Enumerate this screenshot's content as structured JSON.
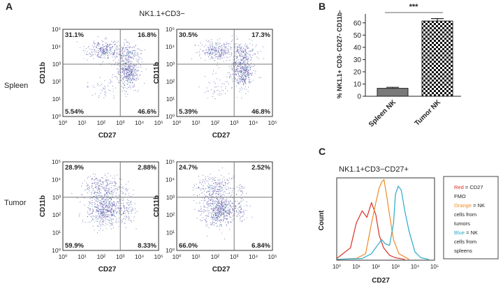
{
  "panel_labels": {
    "a": "A",
    "b": "B",
    "c": "C"
  },
  "figure_title_a": "NK1.1+CD3−",
  "row_labels": [
    "Spleen",
    "Tumor"
  ],
  "axis_tick_labels": [
    "10⁰",
    "10¹",
    "10²",
    "10³",
    "10⁴",
    "10⁵"
  ],
  "facs": {
    "xlabel": "CD27",
    "ylabel": "CD11b",
    "plots": [
      {
        "row": "Spleen",
        "q": [
          "31.1%",
          "16.8%",
          "5.54%",
          "46.6%"
        ]
      },
      {
        "row": "Spleen",
        "q": [
          "30.5%",
          "17.3%",
          "5.39%",
          "46.8%"
        ]
      },
      {
        "row": "Tumor",
        "q": [
          "28.9%",
          "2.88%",
          "59.9%",
          "8.33%"
        ]
      },
      {
        "row": "Tumor",
        "q": [
          "24.7%",
          "2.52%",
          "66.0%",
          "6.84%"
        ]
      }
    ]
  },
  "hist_title": "NK1.1+CD3−CD27+",
  "hist_ylabel": "Count",
  "hist_xlabel": "CD27",
  "legend": {
    "red_word": "Red",
    "red_rest": " = CD27",
    "line2": "FMO",
    "orange_word": "Orange",
    "orange_rest": " = NK",
    "line4": "cells from",
    "line5": "tumors",
    "blue_word": "Blue",
    "blue_rest": " = NK",
    "line7": "cells from",
    "line8": "spleens"
  },
  "colors": {
    "red": "#d93025",
    "orange": "#f08a24",
    "blue": "#29a9c8",
    "dot": "#5a4fa8"
  },
  "chart_data": [
    {
      "type": "scatter",
      "title": "NK1.1+CD3−",
      "xlabel": "CD27",
      "ylabel": "CD11b",
      "xscale": "log",
      "yscale": "log",
      "xlim": [
        1,
        100000
      ],
      "ylim": [
        1,
        100000
      ],
      "quadrant_gate": {
        "x": 1000,
        "y": 1000
      },
      "plots": [
        {
          "row": "Spleen",
          "q_ul": 31.1,
          "q_ur": 16.8,
          "q_ll": 5.54,
          "q_lr": 46.6
        },
        {
          "row": "Spleen",
          "q_ul": 30.5,
          "q_ur": 17.3,
          "q_ll": 5.39,
          "q_lr": 46.8
        },
        {
          "row": "Tumor",
          "q_ul": 28.9,
          "q_ur": 2.88,
          "q_ll": 59.9,
          "q_lr": 8.33
        },
        {
          "row": "Tumor",
          "q_ul": 24.7,
          "q_ur": 2.52,
          "q_ll": 66.0,
          "q_lr": 6.84
        }
      ]
    },
    {
      "type": "bar",
      "categories": [
        "Spleen NK",
        "Tumor NK"
      ],
      "values": [
        6.5,
        61.5
      ],
      "errors": [
        0.8,
        2.0
      ],
      "fills": [
        "solid-gray",
        "checkered"
      ],
      "ylabel": "% NK1.1+ CD3- CD27- CD11b-",
      "ylim": [
        0,
        65
      ],
      "yticks": [
        0,
        10,
        20,
        30,
        40,
        50,
        60
      ],
      "significance": "***"
    },
    {
      "type": "line",
      "title": "NK1.1+CD3−CD27+",
      "xlabel": "CD27",
      "ylabel": "Count",
      "xscale": "log",
      "xlim": [
        1,
        100000
      ],
      "series": [
        {
          "color": "#d93025",
          "x": [
            1,
            5,
            10,
            20,
            35,
            60,
            100,
            150,
            250,
            500,
            1000,
            3000
          ],
          "y": [
            2,
            15,
            45,
            60,
            52,
            70,
            55,
            30,
            15,
            6,
            3,
            1
          ]
        },
        {
          "color": "#f08a24",
          "x": [
            1,
            10,
            30,
            60,
            100,
            150,
            200,
            260,
            350,
            500,
            800,
            1500,
            5000
          ],
          "y": [
            1,
            2,
            8,
            45,
            70,
            88,
            95,
            98,
            80,
            55,
            25,
            8,
            1
          ]
        },
        {
          "color": "#29a9c8",
          "x": [
            1,
            20,
            60,
            120,
            200,
            300,
            500,
            800,
            1000,
            1400,
            2000,
            3000,
            5000,
            10000,
            20000,
            50000
          ],
          "y": [
            1,
            2,
            8,
            18,
            25,
            20,
            18,
            45,
            80,
            90,
            85,
            60,
            35,
            10,
            3,
            1
          ]
        }
      ]
    }
  ]
}
